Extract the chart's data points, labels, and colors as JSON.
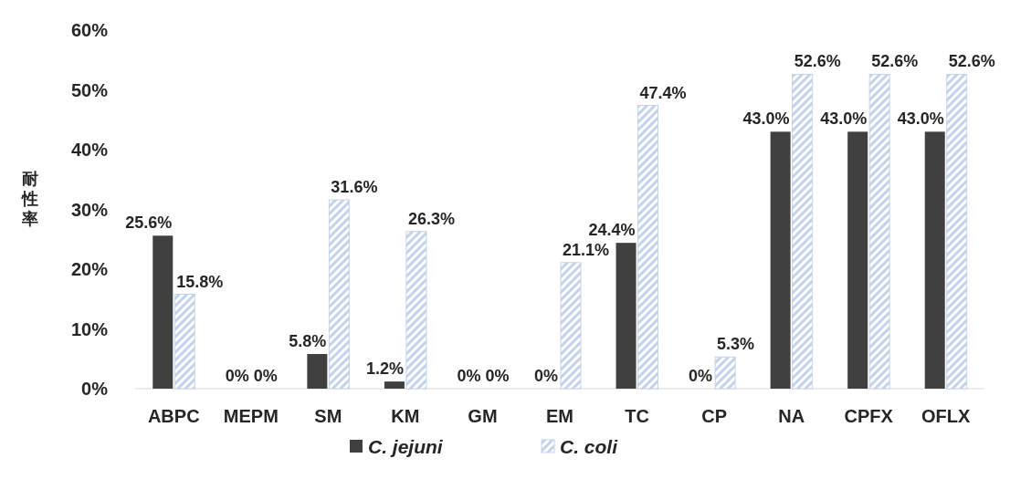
{
  "chart_data": {
    "type": "bar",
    "ylabel": "耐性率",
    "categories": [
      "ABPC",
      "MEPM",
      "SM",
      "KM",
      "GM",
      "EM",
      "TC",
      "CP",
      "NA",
      "CPFX",
      "OFLX"
    ],
    "series": [
      {
        "name": "C. jejuni",
        "color": "#404040",
        "values": [
          25.6,
          0,
          5.8,
          1.2,
          0,
          0,
          24.4,
          0,
          43.0,
          43.0,
          43.0
        ],
        "value_labels": [
          "25.6%",
          "0%",
          "5.8%",
          "1.2%",
          "0%",
          "0%",
          "24.4%",
          "0%",
          "43.0%",
          "43.0%",
          "43.0%"
        ]
      },
      {
        "name": "C. coli",
        "color": "#c5d3ea",
        "values": [
          15.8,
          0,
          31.6,
          26.3,
          0,
          21.1,
          47.4,
          5.3,
          52.6,
          52.6,
          52.6
        ],
        "value_labels": [
          "15.8%",
          "0%",
          "31.6%",
          "26.3%",
          "0%",
          "21.1%",
          "47.4%",
          "5.3%",
          "52.6%",
          "52.6%",
          "52.6%"
        ]
      }
    ],
    "ylim": [
      0,
      60
    ],
    "yticks": [
      {
        "value": 0,
        "label": "0%"
      },
      {
        "value": 10,
        "label": "10%"
      },
      {
        "value": 20,
        "label": "20%"
      },
      {
        "value": 30,
        "label": "30%"
      },
      {
        "value": 40,
        "label": "40%"
      },
      {
        "value": 50,
        "label": "50%"
      },
      {
        "value": 60,
        "label": "60%"
      }
    ],
    "legend": "bottom"
  }
}
